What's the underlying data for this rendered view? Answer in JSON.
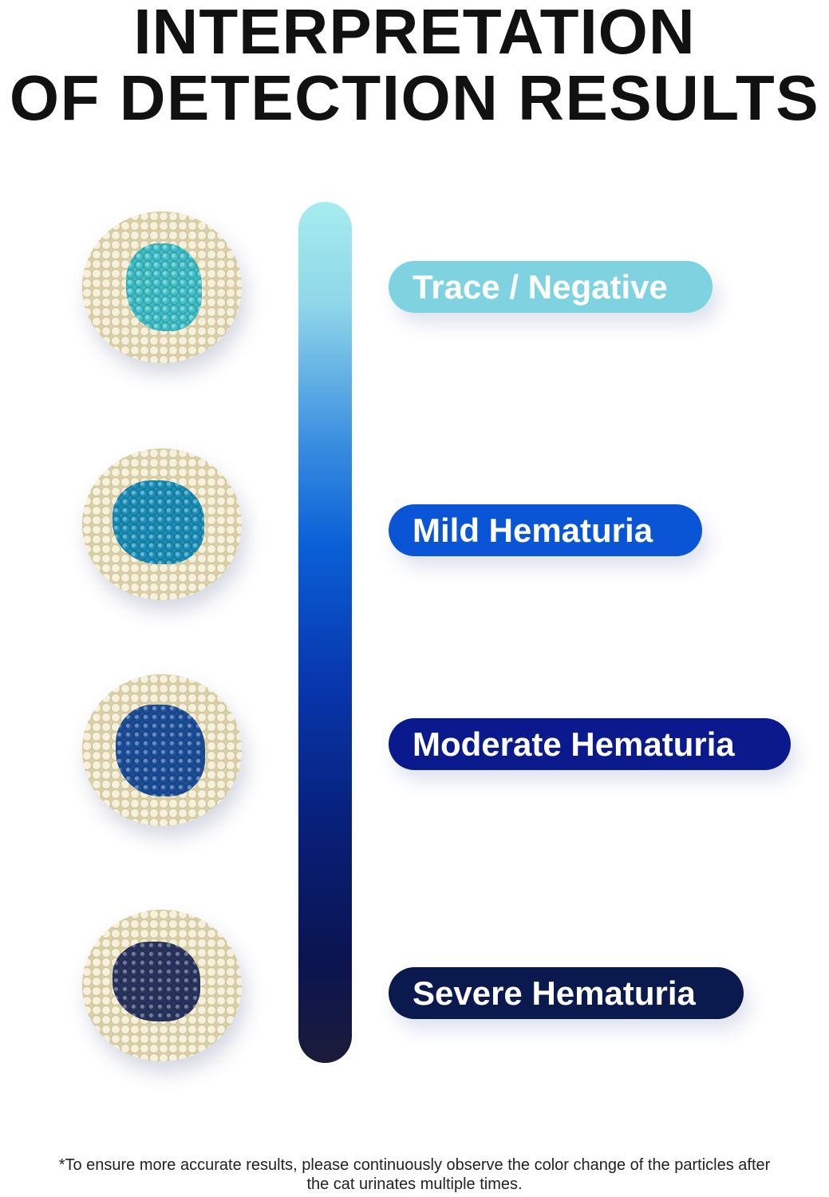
{
  "title": {
    "line1": "INTERPRETATION",
    "line2": "OF DETECTION RESULTS"
  },
  "scale_gradient": [
    "#a6ecee",
    "#0a5fd6",
    "#07207a",
    "#1b1b3a"
  ],
  "levels": [
    {
      "label": "Trace / Negative",
      "color": "#7fd3e0",
      "sample_color": "#3fc0c8"
    },
    {
      "label": "Mild Hematuria",
      "color": "#0a55d6",
      "sample_color": "#1a8fb8"
    },
    {
      "label": "Moderate Hematuria",
      "color": "#0a1a8c",
      "sample_color": "#1c4f9a"
    },
    {
      "label": "Severe Hematuria",
      "color": "#0a1a4f",
      "sample_color": "#2a3560"
    }
  ],
  "footnote": "*To ensure more accurate results, please continuously observe the color change of the particles after the cat urinates multiple times."
}
